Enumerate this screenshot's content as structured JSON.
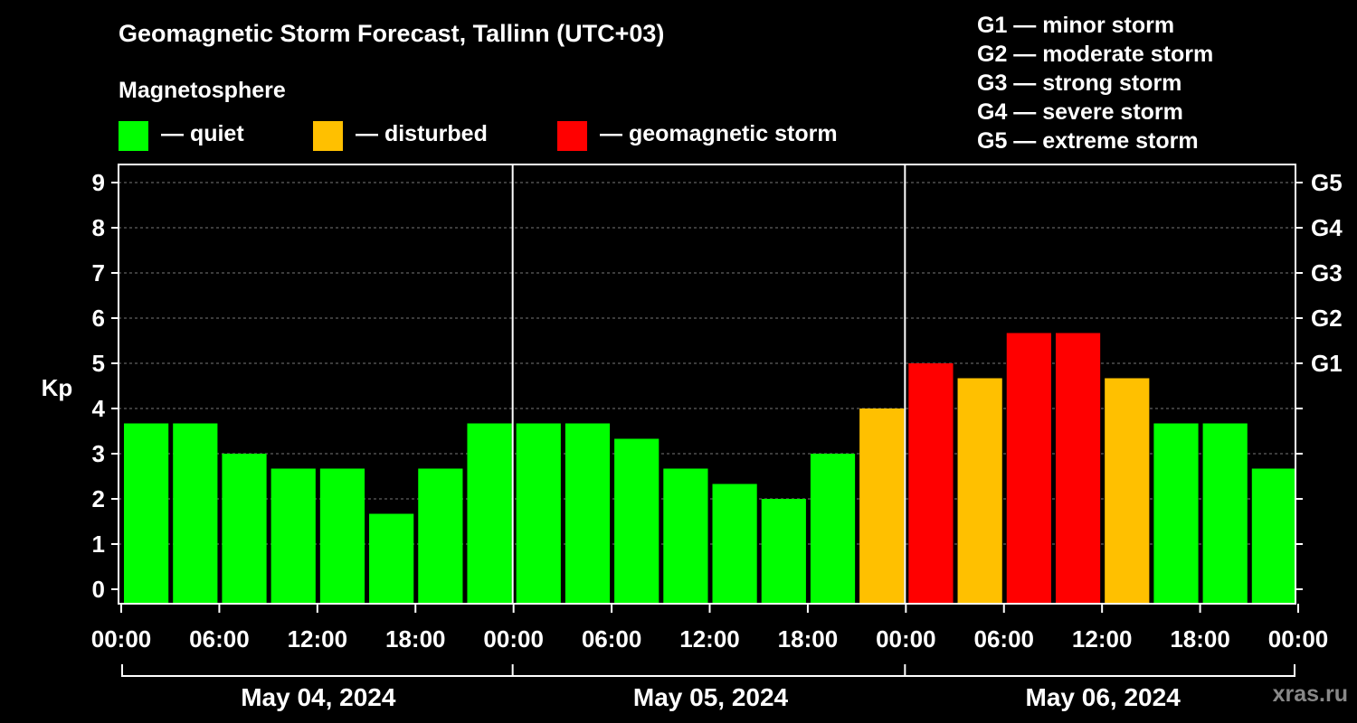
{
  "title": "Geomagnetic Storm Forecast, Tallinn (UTC+03)",
  "legend": {
    "heading": "Magnetosphere",
    "items": [
      {
        "label": "— quiet",
        "color": "#00ff00"
      },
      {
        "label": "— disturbed",
        "color": "#ffc000"
      },
      {
        "label": "— geomagnetic storm",
        "color": "#ff0000"
      }
    ]
  },
  "g_scale": [
    "G1 — minor storm",
    "G2 — moderate storm",
    "G3 — strong storm",
    "G4 — severe storm",
    "G5 — extreme storm"
  ],
  "watermark": "xras.ru",
  "chart_data": {
    "type": "bar",
    "ylabel": "Kp",
    "ylim": [
      0,
      9
    ],
    "yticks": [
      0,
      1,
      2,
      3,
      4,
      5,
      6,
      7,
      8,
      9
    ],
    "right_axis_labels": [
      {
        "kp": 5,
        "label": "G1"
      },
      {
        "kp": 6,
        "label": "G2"
      },
      {
        "kp": 7,
        "label": "G3"
      },
      {
        "kp": 8,
        "label": "G4"
      },
      {
        "kp": 9,
        "label": "G5"
      }
    ],
    "x_tick_labels": [
      "00:00",
      "06:00",
      "12:00",
      "18:00",
      "00:00",
      "06:00",
      "12:00",
      "18:00",
      "00:00",
      "06:00",
      "12:00",
      "18:00",
      "00:00"
    ],
    "days": [
      "May 04, 2024",
      "May 05, 2024",
      "May 06, 2024"
    ],
    "interval_hours": 3,
    "values": [
      3.67,
      3.67,
      3.0,
      2.67,
      2.67,
      1.67,
      2.67,
      3.67,
      3.67,
      3.67,
      3.33,
      2.67,
      2.33,
      2.0,
      3.0,
      4.0,
      5.0,
      4.67,
      5.67,
      5.67,
      4.67,
      3.67,
      3.67,
      2.67
    ],
    "status": [
      "quiet",
      "quiet",
      "quiet",
      "quiet",
      "quiet",
      "quiet",
      "quiet",
      "quiet",
      "quiet",
      "quiet",
      "quiet",
      "quiet",
      "quiet",
      "quiet",
      "quiet",
      "disturbed",
      "storm",
      "disturbed",
      "storm",
      "storm",
      "disturbed",
      "quiet",
      "quiet",
      "quiet"
    ],
    "status_colors": {
      "quiet": "#00ff00",
      "disturbed": "#ffc000",
      "storm": "#ff0000"
    },
    "grid": true,
    "legend_position": "top"
  }
}
